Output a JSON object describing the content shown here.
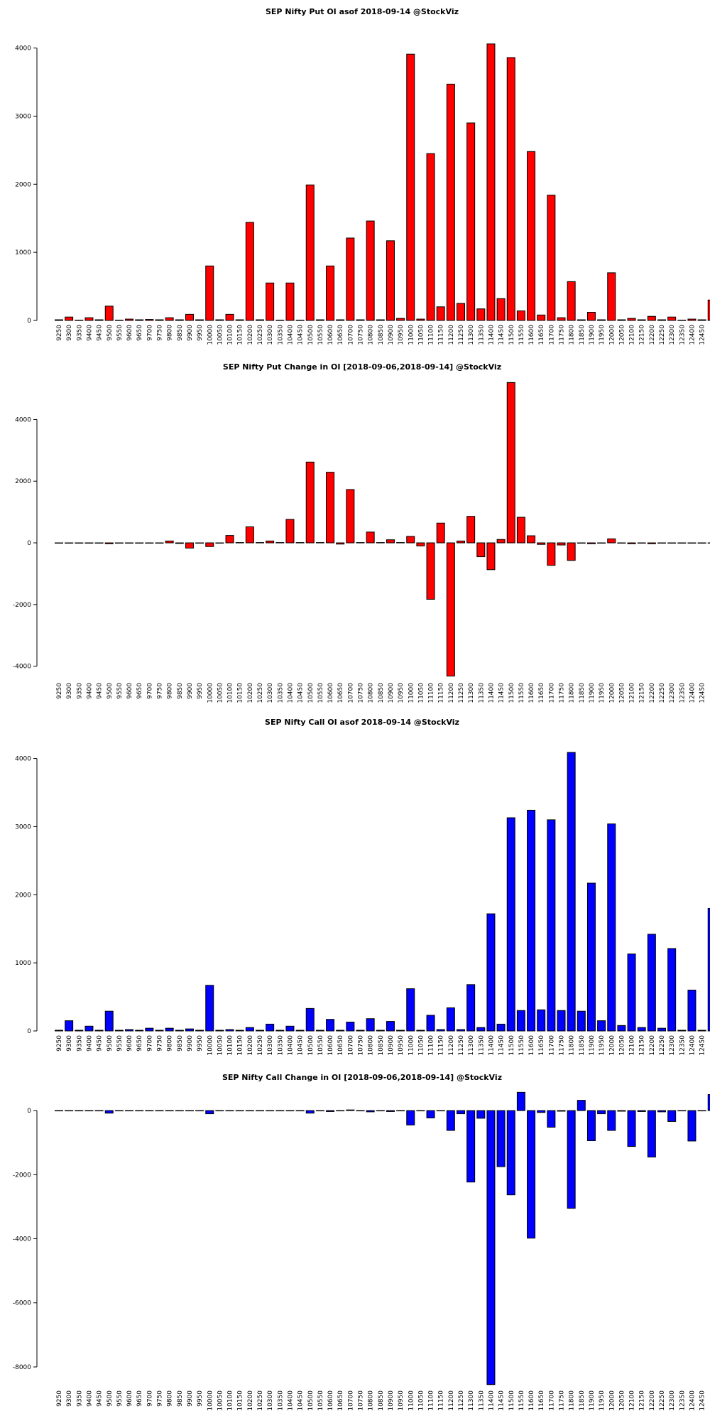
{
  "chart_data": [
    {
      "type": "bar",
      "title": "SEP Nifty Put OI asof 2018-09-14 @StockViz",
      "color": "#ff0000",
      "categories": [
        "9250",
        "9300",
        "9350",
        "9400",
        "9450",
        "9500",
        "9550",
        "9600",
        "9650",
        "9700",
        "9750",
        "9800",
        "9850",
        "9900",
        "9950",
        "10000",
        "10050",
        "10100",
        "10150",
        "10200",
        "10250",
        "10300",
        "10350",
        "10400",
        "10450",
        "10500",
        "10550",
        "10600",
        "10650",
        "10700",
        "10750",
        "10800",
        "10850",
        "10900",
        "10950",
        "11000",
        "11050",
        "11100",
        "11150",
        "11200",
        "11250",
        "11300",
        "11350",
        "11400",
        "11450",
        "11500",
        "11550",
        "11600",
        "11650",
        "11700",
        "11750",
        "11800",
        "11850",
        "11900",
        "11950",
        "12000",
        "12050",
        "12100",
        "12150",
        "12200",
        "12250",
        "12300",
        "12350",
        "12400",
        "12450",
        null
      ],
      "values": [
        10,
        50,
        5,
        40,
        10,
        210,
        5,
        20,
        10,
        15,
        10,
        40,
        10,
        90,
        10,
        800,
        10,
        90,
        10,
        1440,
        10,
        550,
        5,
        550,
        5,
        1990,
        10,
        800,
        10,
        1210,
        10,
        1460,
        10,
        1170,
        30,
        3910,
        20,
        2450,
        200,
        3470,
        250,
        2900,
        170,
        4060,
        320,
        3860,
        140,
        2480,
        80,
        1840,
        40,
        570,
        10,
        120,
        10,
        700,
        10,
        30,
        10,
        60,
        10,
        50,
        5,
        20,
        10,
        300
      ],
      "ylim": [
        0,
        4100
      ],
      "yticks": [
        0,
        1000,
        2000,
        3000,
        4000
      ]
    },
    {
      "type": "bar",
      "title": "SEP Nifty Put Change in OI [2018-09-06,2018-09-14] @StockViz",
      "color": "#ff0000",
      "categories": [
        "9250",
        "9300",
        "9350",
        "9400",
        "9450",
        "9500",
        "9550",
        "9600",
        "9650",
        "9700",
        "9750",
        "9800",
        "9850",
        "9900",
        "9950",
        "10000",
        "10050",
        "10100",
        "10150",
        "10200",
        "10250",
        "10300",
        "10350",
        "10400",
        "10450",
        "10500",
        "10550",
        "10600",
        "10650",
        "10700",
        "10750",
        "10800",
        "10850",
        "10900",
        "10950",
        "11000",
        "11050",
        "11100",
        "11150",
        "11200",
        "11250",
        "11300",
        "11350",
        "11400",
        "11450",
        "11500",
        "11550",
        "11600",
        "11650",
        "11700",
        "11750",
        "11800",
        "11850",
        "11900",
        "11950",
        "12000",
        "12050",
        "12100",
        "12150",
        "12200",
        "12250",
        "12300",
        "12350",
        "12400",
        "12450",
        null
      ],
      "values": [
        0,
        0,
        0,
        0,
        0,
        -30,
        0,
        0,
        0,
        0,
        0,
        60,
        -20,
        -170,
        0,
        -120,
        0,
        240,
        10,
        520,
        10,
        60,
        10,
        760,
        10,
        2620,
        10,
        2290,
        -40,
        1730,
        10,
        350,
        10,
        100,
        10,
        210,
        -100,
        -1830,
        640,
        -4320,
        60,
        860,
        -450,
        -870,
        110,
        5200,
        830,
        230,
        -50,
        -730,
        -70,
        -570,
        0,
        -30,
        -10,
        130,
        0,
        -30,
        -10,
        -30,
        0,
        0,
        0,
        0,
        0,
        0
      ],
      "ylim": [
        -4400,
        5300
      ],
      "yticks": [
        -4000,
        -2000,
        0,
        2000,
        4000
      ]
    },
    {
      "type": "bar",
      "title": "SEP Nifty Call OI asof 2018-09-14 @StockViz",
      "color": "#0000ff",
      "categories": [
        "9250",
        "9300",
        "9350",
        "9400",
        "9450",
        "9500",
        "9550",
        "9600",
        "9650",
        "9700",
        "9750",
        "9800",
        "9850",
        "9900",
        "9950",
        "10000",
        "10050",
        "10100",
        "10150",
        "10200",
        "10250",
        "10300",
        "10350",
        "10400",
        "10450",
        "10500",
        "10550",
        "10600",
        "10650",
        "10700",
        "10750",
        "10800",
        "10850",
        "10900",
        "10950",
        "11000",
        "11050",
        "11100",
        "11150",
        "11200",
        "11250",
        "11300",
        "11350",
        "11400",
        "11450",
        "11500",
        "11550",
        "11600",
        "11650",
        "11700",
        "11750",
        "11800",
        "11850",
        "11900",
        "11950",
        "12000",
        "12050",
        "12100",
        "12150",
        "12200",
        "12250",
        "12300",
        "12350",
        "12400",
        "12450",
        null
      ],
      "values": [
        10,
        150,
        10,
        70,
        10,
        290,
        10,
        20,
        10,
        40,
        10,
        40,
        10,
        30,
        10,
        670,
        10,
        20,
        10,
        50,
        10,
        100,
        10,
        70,
        10,
        330,
        10,
        170,
        10,
        130,
        10,
        180,
        10,
        140,
        10,
        620,
        10,
        230,
        20,
        340,
        20,
        680,
        50,
        1720,
        100,
        3130,
        300,
        3240,
        310,
        3100,
        300,
        4090,
        290,
        2170,
        150,
        3040,
        80,
        1130,
        50,
        1420,
        40,
        1210,
        10,
        600,
        10,
        1800
      ],
      "ylim": [
        0,
        4100
      ],
      "yticks": [
        0,
        1000,
        2000,
        3000,
        4000
      ]
    },
    {
      "type": "bar",
      "title": "SEP Nifty Call Change in OI [2018-09-06,2018-09-14] @StockViz",
      "color": "#0000ff",
      "categories": [
        "9250",
        "9300",
        "9350",
        "9400",
        "9450",
        "9500",
        "9550",
        "9600",
        "9650",
        "9700",
        "9750",
        "9800",
        "9850",
        "9900",
        "9950",
        "10000",
        "10050",
        "10100",
        "10150",
        "10200",
        "10250",
        "10300",
        "10350",
        "10400",
        "10450",
        "10500",
        "10550",
        "10600",
        "10650",
        "10700",
        "10750",
        "10800",
        "10850",
        "10900",
        "10950",
        "11000",
        "11050",
        "11100",
        "11150",
        "11200",
        "11250",
        "11300",
        "11350",
        "11400",
        "11450",
        "11500",
        "11550",
        "11600",
        "11650",
        "11700",
        "11750",
        "11800",
        "11850",
        "11900",
        "11950",
        "12000",
        "12050",
        "12100",
        "12150",
        "12200",
        "12250",
        "12300",
        "12350",
        "12400",
        "12450",
        null
      ],
      "values": [
        0,
        0,
        0,
        0,
        0,
        -80,
        0,
        0,
        0,
        0,
        0,
        0,
        0,
        0,
        0,
        -100,
        0,
        0,
        0,
        0,
        0,
        0,
        0,
        0,
        0,
        -80,
        0,
        -30,
        0,
        20,
        0,
        -40,
        0,
        -30,
        0,
        -450,
        0,
        -230,
        0,
        -620,
        -100,
        -2230,
        -240,
        -8550,
        -1750,
        -2630,
        570,
        -3980,
        -60,
        -520,
        -20,
        -3050,
        320,
        -940,
        -100,
        -620,
        -20,
        -1120,
        -30,
        -1450,
        -40,
        -340,
        -10,
        -950,
        -10,
        500
      ],
      "ylim": [
        -8600,
        600
      ],
      "yticks": [
        -8000,
        -6000,
        -4000,
        -2000,
        0
      ]
    }
  ]
}
